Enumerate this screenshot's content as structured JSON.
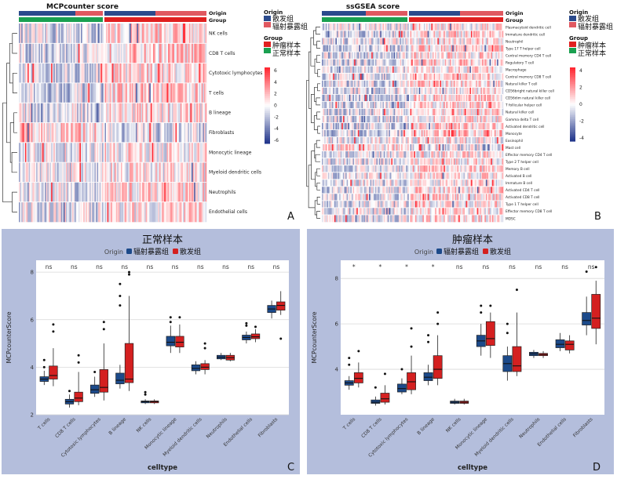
{
  "panel_letters": {
    "a": "A",
    "b": "B",
    "c": "C",
    "d": "D"
  },
  "heatmaps": [
    {
      "title": "MCPcounter score",
      "annotation_labels": {
        "origin": "Origin",
        "group": "Group"
      },
      "rows": [
        "NK cells",
        "CD8 T cells",
        "Cytotoxic lymphocytes",
        "T cells",
        "B lineage",
        "Fibroblasts",
        "Monocytic lineage",
        "Myeloid dendritic cells",
        "Neutrophils",
        "Endothelial cells"
      ],
      "legend": {
        "origin_title": "Origin",
        "origin_items": [
          "散发组",
          "辐射暴露组"
        ],
        "group_title": "Group",
        "group_items": [
          "肿瘤样本",
          "正常样本"
        ],
        "scale_ticks": [
          "6",
          "4",
          "2",
          "0",
          "-2",
          "-4",
          "-6"
        ]
      }
    },
    {
      "title": "ssGSEA score",
      "annotation_labels": {
        "origin": "Origin",
        "group": "Group"
      },
      "rows": [
        "Plasmacytoid dendritic cell",
        "Immature dendritic cell",
        "Neutrophil",
        "Type 17 T helper cell",
        "Central memory CD4 T cell",
        "Regulatory T cell",
        "Macrophage",
        "Central memory CD8 T cell",
        "Natural killer T cell",
        "CD56bright natural killer cell",
        "CD56dim natural killer cell",
        "T follicular helper cell",
        "Natural killer cell",
        "Gamma delta T cell",
        "Activated dendritic cell",
        "Monocyte",
        "Eosinophil",
        "Mast cell",
        "Effector memory CD4 T cell",
        "Type 2 T helper cell",
        "Memory B cell",
        "Activated B cell",
        "Immature B cell",
        "Activated CD4 T cell",
        "Activated CD8 T cell",
        "Type 1 T helper cell",
        "Effector memory CD8 T cell",
        "MDSC"
      ],
      "legend": {
        "origin_title": "Origin",
        "origin_items": [
          "散发组",
          "辐射暴露组"
        ],
        "group_title": "Group",
        "group_items": [
          "肿瘤样本",
          "正常样本"
        ],
        "scale_ticks": [
          "4",
          "2",
          "0",
          "-2",
          "-4"
        ]
      }
    }
  ],
  "colors": {
    "sporadic": "#2b4a8c",
    "radiation": "#e05860",
    "tumor": "#e02020",
    "normal": "#1aa050",
    "box_blue": "#1c4a8a",
    "box_red": "#d42020",
    "panel_bg": "#b4bedc"
  },
  "chart_data": [
    {
      "type": "box",
      "title": "正常样本",
      "legend": {
        "title": "Origin",
        "items": [
          "辐射暴露组",
          "散发组"
        ]
      },
      "xlabel": "celltype",
      "ylabel": "MCPcounterScore",
      "ylim": [
        2,
        8.5
      ],
      "yticks": [
        "2",
        "4",
        "6",
        "8"
      ],
      "categories": [
        "T cells",
        "CD8 T cells",
        "Cytotoxic lymphocytes",
        "B lineage",
        "NK cells",
        "Monocytic lineage",
        "Myeloid dendritic cells",
        "Neutrophils",
        "Endothelial cells",
        "Fibroblasts"
      ],
      "significance": [
        "ns",
        "ns",
        "ns",
        "ns",
        "ns",
        "ns",
        "ns",
        "ns",
        "ns",
        "ns"
      ],
      "series": [
        {
          "name": "辐射暴露组",
          "boxes": [
            {
              "low": 3.25,
              "q1": 3.4,
              "median": 3.5,
              "q3": 3.6,
              "high": 3.85,
              "outliers": [
                4.0,
                4.3
              ]
            },
            {
              "low": 2.3,
              "q1": 2.45,
              "median": 2.55,
              "q3": 2.65,
              "high": 2.85,
              "outliers": [
                3.0
              ]
            },
            {
              "low": 2.75,
              "q1": 2.9,
              "median": 3.05,
              "q3": 3.25,
              "high": 3.6,
              "outliers": [
                3.8
              ]
            },
            {
              "low": 3.1,
              "q1": 3.3,
              "median": 3.45,
              "q3": 3.75,
              "high": 4.1,
              "outliers": [
                7.5,
                7.0,
                6.6
              ]
            },
            {
              "low": 2.45,
              "q1": 2.5,
              "median": 2.55,
              "q3": 2.58,
              "high": 2.65,
              "outliers": [
                2.85,
                2.95
              ]
            },
            {
              "low": 4.6,
              "q1": 4.9,
              "median": 5.05,
              "q3": 5.3,
              "high": 5.75,
              "outliers": [
                5.9,
                6.1
              ]
            },
            {
              "low": 3.7,
              "q1": 3.85,
              "median": 3.95,
              "q3": 4.1,
              "high": 4.25,
              "outliers": []
            },
            {
              "low": 4.3,
              "q1": 4.35,
              "median": 4.42,
              "q3": 4.5,
              "high": 4.6,
              "outliers": []
            },
            {
              "low": 5.0,
              "q1": 5.15,
              "median": 5.25,
              "q3": 5.35,
              "high": 5.5,
              "outliers": [
                5.75,
                5.85
              ]
            },
            {
              "low": 6.05,
              "q1": 6.3,
              "median": 6.45,
              "q3": 6.6,
              "high": 6.8,
              "outliers": []
            }
          ]
        },
        {
          "name": "散发组",
          "boxes": [
            {
              "low": 3.2,
              "q1": 3.5,
              "median": 3.65,
              "q3": 4.05,
              "high": 4.8,
              "outliers": [
                5.5,
                5.8
              ]
            },
            {
              "low": 2.4,
              "q1": 2.55,
              "median": 2.7,
              "q3": 2.95,
              "high": 3.8,
              "outliers": [
                4.2,
                4.5
              ]
            },
            {
              "low": 2.6,
              "q1": 2.95,
              "median": 3.15,
              "q3": 3.9,
              "high": 5.0,
              "outliers": [
                5.6,
                5.9
              ]
            },
            {
              "low": 3.0,
              "q1": 3.35,
              "median": 3.5,
              "q3": 5.0,
              "high": 7.0,
              "outliers": [
                7.9,
                8.0
              ]
            },
            {
              "low": 2.45,
              "q1": 2.5,
              "median": 2.55,
              "q3": 2.58,
              "high": 2.65,
              "outliers": []
            },
            {
              "low": 4.6,
              "q1": 4.85,
              "median": 5.05,
              "q3": 5.3,
              "high": 5.8,
              "outliers": [
                6.1
              ]
            },
            {
              "low": 3.7,
              "q1": 3.9,
              "median": 4.0,
              "q3": 4.15,
              "high": 4.3,
              "outliers": [
                4.8,
                5.0
              ]
            },
            {
              "low": 4.25,
              "q1": 4.3,
              "median": 4.4,
              "q3": 4.5,
              "high": 4.6,
              "outliers": []
            },
            {
              "low": 5.05,
              "q1": 5.2,
              "median": 5.28,
              "q3": 5.4,
              "high": 5.6,
              "outliers": [
                5.7
              ]
            },
            {
              "low": 6.2,
              "q1": 6.4,
              "median": 6.6,
              "q3": 6.75,
              "high": 7.2,
              "outliers": [
                5.2
              ]
            }
          ]
        }
      ]
    },
    {
      "type": "box",
      "title": "肿瘤样本",
      "legend": {
        "title": "Origin",
        "items": [
          "辐射暴露组",
          "散发组"
        ]
      },
      "xlabel": "celltype",
      "ylabel": "MCPcounterScore",
      "ylim": [
        2,
        8.8
      ],
      "yticks": [
        "4",
        "6",
        "8"
      ],
      "categories": [
        "T cells",
        "CD8 T cells",
        "Cytotoxic lymphocytes",
        "B lineage",
        "NK cells",
        "Monocytic lineage",
        "Myeloid dendritic cells",
        "Neutrophils",
        "Endothelial cells",
        "Fibroblasts"
      ],
      "significance": [
        "*",
        "*",
        "*",
        "*",
        "ns",
        "ns",
        "ns",
        "ns",
        "ns",
        "ns"
      ],
      "series": [
        {
          "name": "辐射暴露组",
          "boxes": [
            {
              "low": 3.1,
              "q1": 3.3,
              "median": 3.4,
              "q3": 3.5,
              "high": 3.7,
              "outliers": [
                4.2,
                4.5
              ]
            },
            {
              "low": 2.4,
              "q1": 2.5,
              "median": 2.55,
              "q3": 2.65,
              "high": 2.8,
              "outliers": [
                3.2
              ]
            },
            {
              "low": 2.9,
              "q1": 3.0,
              "median": 3.15,
              "q3": 3.35,
              "high": 3.6,
              "outliers": [
                4.0
              ]
            },
            {
              "low": 3.3,
              "q1": 3.5,
              "median": 3.65,
              "q3": 3.85,
              "high": 4.2,
              "outliers": [
                5.2,
                5.5
              ]
            },
            {
              "low": 2.45,
              "q1": 2.5,
              "median": 2.55,
              "q3": 2.6,
              "high": 2.7,
              "outliers": []
            },
            {
              "low": 4.6,
              "q1": 5.0,
              "median": 5.25,
              "q3": 5.5,
              "high": 6.0,
              "outliers": [
                6.5,
                6.8
              ]
            },
            {
              "low": 3.5,
              "q1": 3.9,
              "median": 4.25,
              "q3": 4.6,
              "high": 5.0,
              "outliers": [
                5.6,
                6.0
              ]
            },
            {
              "low": 4.5,
              "q1": 4.6,
              "median": 4.68,
              "q3": 4.75,
              "high": 4.85,
              "outliers": []
            },
            {
              "low": 4.8,
              "q1": 4.95,
              "median": 5.1,
              "q3": 5.3,
              "high": 5.6,
              "outliers": []
            },
            {
              "low": 5.5,
              "q1": 5.95,
              "median": 6.15,
              "q3": 6.5,
              "high": 7.2,
              "outliers": [
                8.3
              ]
            }
          ]
        },
        {
          "name": "散发组",
          "boxes": [
            {
              "low": 3.2,
              "q1": 3.4,
              "median": 3.6,
              "q3": 3.85,
              "high": 4.3,
              "outliers": [
                4.8
              ]
            },
            {
              "low": 2.45,
              "q1": 2.55,
              "median": 2.7,
              "q3": 2.95,
              "high": 3.3,
              "outliers": [
                3.8
              ]
            },
            {
              "low": 2.9,
              "q1": 3.1,
              "median": 3.45,
              "q3": 3.85,
              "high": 4.6,
              "outliers": [
                5.0,
                5.8
              ]
            },
            {
              "low": 3.3,
              "q1": 3.6,
              "median": 4.0,
              "q3": 4.6,
              "high": 5.5,
              "outliers": [
                6.0,
                6.5
              ]
            },
            {
              "low": 2.45,
              "q1": 2.5,
              "median": 2.55,
              "q3": 2.6,
              "high": 2.7,
              "outliers": []
            },
            {
              "low": 4.5,
              "q1": 5.05,
              "median": 5.35,
              "q3": 6.1,
              "high": 6.5,
              "outliers": [
                6.8
              ]
            },
            {
              "low": 3.7,
              "q1": 3.9,
              "median": 4.15,
              "q3": 5.0,
              "high": 6.5,
              "outliers": [
                7.5
              ]
            },
            {
              "low": 4.5,
              "q1": 4.6,
              "median": 4.65,
              "q3": 4.7,
              "high": 4.8,
              "outliers": []
            },
            {
              "low": 4.7,
              "q1": 4.85,
              "median": 5.1,
              "q3": 5.25,
              "high": 5.5,
              "outliers": []
            },
            {
              "low": 5.1,
              "q1": 5.8,
              "median": 6.25,
              "q3": 7.3,
              "high": 7.9,
              "outliers": [
                8.5
              ]
            }
          ]
        }
      ]
    }
  ]
}
